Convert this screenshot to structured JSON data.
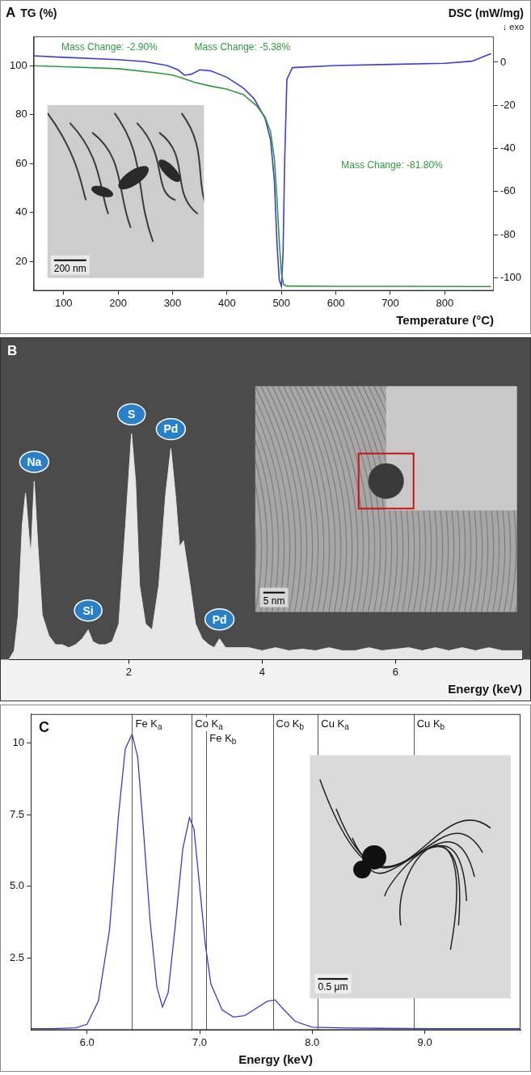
{
  "chart_data": [
    {
      "panel": "A",
      "type": "line",
      "x_label": "Temperature (°C)",
      "y_label": "TG (%)",
      "y2_label": "DSC (mW/mg)",
      "y2_note": "↓ exo",
      "xlim": [
        45,
        890
      ],
      "xticks": [
        100,
        200,
        300,
        400,
        500,
        600,
        700,
        800
      ],
      "ylim": [
        8,
        112
      ],
      "yticks": [
        20,
        40,
        60,
        80,
        100
      ],
      "y2lim": [
        -106,
        12
      ],
      "y2ticks": [
        0,
        -20,
        -40,
        -60,
        -80,
        -100
      ],
      "grid": false,
      "series": [
        {
          "color": "#2e9a3e",
          "x": [
            45,
            100,
            200,
            270,
            300,
            320,
            340,
            370,
            400,
            430,
            455,
            470,
            480,
            487,
            492,
            496,
            500,
            504,
            510,
            600,
            700,
            885
          ],
          "values": [
            100,
            99.6,
            98.8,
            97.1,
            96.2,
            94.8,
            93.2,
            91.7,
            90.4,
            88.2,
            83.5,
            79,
            73,
            62,
            45,
            28,
            15,
            10.5,
            9.9,
            9.8,
            9.8,
            9.7
          ]
        },
        {
          "color": "#3d3dd6",
          "axis": "y2",
          "x": [
            45,
            100,
            200,
            250,
            290,
            310,
            322,
            335,
            350,
            370,
            400,
            430,
            450,
            470,
            480,
            487,
            492,
            496,
            500,
            503,
            506,
            510,
            520,
            600,
            700,
            800,
            850,
            885
          ],
          "values": [
            3,
            2.3,
            1.2,
            0.3,
            -1.5,
            -3.5,
            -6,
            -5.5,
            -3.5,
            -4,
            -7,
            -12,
            -17,
            -26,
            -36,
            -55,
            -85,
            -101,
            -104,
            -88,
            -45,
            -8,
            -2.5,
            -1.5,
            -1,
            -0.5,
            0.5,
            4
          ]
        }
      ],
      "annotations": [
        {
          "text": "Mass Change: -2.90%",
          "x": 96,
          "y": 106.5
        },
        {
          "text": "Mass Change: -5.38%",
          "x": 340,
          "y": 106.5
        },
        {
          "text": "Mass Change: -81.80%",
          "x": 610,
          "y": 58
        }
      ],
      "inset": {
        "scale_bar": "200 nm"
      }
    },
    {
      "panel": "B",
      "type": "area",
      "x_label": "Energy (keV)",
      "xlim": [
        0.2,
        7.9
      ],
      "xticks": [
        2,
        4,
        6
      ],
      "ylim": [
        0,
        100
      ],
      "tick_labels": "x",
      "grid": false,
      "color": "#e6e6e6",
      "x": [
        0.2,
        0.28,
        0.34,
        0.4,
        0.45,
        0.5,
        0.53,
        0.58,
        0.63,
        0.7,
        0.8,
        0.9,
        1.0,
        1.1,
        1.2,
        1.3,
        1.39,
        1.46,
        1.55,
        1.65,
        1.75,
        1.85,
        1.95,
        2.04,
        2.1,
        2.16,
        2.25,
        2.35,
        2.45,
        2.55,
        2.63,
        2.7,
        2.76,
        2.82,
        2.9,
        3.0,
        3.1,
        3.2,
        3.28,
        3.36,
        3.45,
        3.6,
        3.8,
        4.0,
        4.2,
        4.4,
        4.6,
        4.8,
        5.0,
        5.2,
        5.4,
        5.6,
        5.8,
        6.0,
        6.2,
        6.4,
        6.6,
        6.8,
        7.0,
        7.2,
        7.4,
        7.6,
        7.9
      ],
      "values": [
        0,
        3,
        15,
        45,
        56,
        42,
        35,
        60,
        40,
        15,
        8,
        5,
        5,
        4,
        5,
        7,
        10,
        6,
        5,
        5,
        6,
        12,
        45,
        76,
        60,
        25,
        12,
        10,
        25,
        55,
        71,
        55,
        38,
        40,
        28,
        12,
        7,
        5,
        4,
        7,
        4,
        4,
        4,
        3,
        4,
        3,
        3.5,
        3,
        4,
        3,
        3,
        4,
        3,
        3.5,
        4,
        3,
        4,
        3,
        4,
        3,
        4,
        3,
        3
      ],
      "peak_labels": [
        {
          "text": "Na",
          "x": 0.58
        },
        {
          "text": "Si",
          "x": 1.39
        },
        {
          "text": "S",
          "x": 2.04
        },
        {
          "text": "Pd",
          "x": 2.63
        },
        {
          "text": "Pd",
          "x": 3.36
        }
      ],
      "inset": {
        "scale_bar": "5 nm"
      }
    },
    {
      "panel": "C",
      "type": "line",
      "x_label": "Energy (keV)",
      "xlim": [
        5.5,
        9.85
      ],
      "xticks": [
        {
          "value": 6,
          "label": "6.0"
        },
        {
          "value": 7,
          "label": "7.0"
        },
        {
          "value": 8,
          "label": "8.0"
        },
        {
          "value": 9,
          "label": "9.0"
        }
      ],
      "ylim": [
        0,
        11
      ],
      "yticks": [
        2.5,
        {
          "value": 5,
          "label": "5.0"
        },
        7.5,
        10
      ],
      "grid": false,
      "color": "#3a3ad0",
      "x": [
        5.5,
        5.7,
        5.9,
        6.0,
        6.1,
        6.2,
        6.28,
        6.34,
        6.4,
        6.45,
        6.5,
        6.56,
        6.62,
        6.67,
        6.72,
        6.78,
        6.85,
        6.91,
        6.95,
        7.0,
        7.05,
        7.1,
        7.2,
        7.3,
        7.4,
        7.5,
        7.6,
        7.67,
        7.75,
        7.85,
        8.0,
        8.3,
        8.6,
        9.0,
        9.4,
        9.85
      ],
      "values": [
        0.05,
        0.05,
        0.08,
        0.2,
        1.0,
        3.5,
        7.5,
        9.8,
        10.3,
        9.5,
        7.0,
        3.8,
        1.5,
        0.8,
        1.3,
        3.5,
        6.3,
        7.4,
        7.0,
        5.0,
        3.0,
        1.6,
        0.7,
        0.45,
        0.5,
        0.75,
        1.0,
        1.05,
        0.7,
        0.3,
        0.1,
        0.07,
        0.06,
        0.05,
        0.05,
        0.05
      ],
      "lines": [
        {
          "label": "Fe Ka",
          "x": 6.4
        },
        {
          "label": "Co Ka",
          "x": 6.93
        },
        {
          "label": "Fe Kb",
          "x": 7.06
        },
        {
          "label": "Co Kb",
          "x": 7.65
        },
        {
          "label": "Cu Ka",
          "x": 8.05
        },
        {
          "label": "Cu Kb",
          "x": 8.9
        }
      ],
      "inset": {
        "scale_bar": "0.5 μm"
      }
    }
  ]
}
